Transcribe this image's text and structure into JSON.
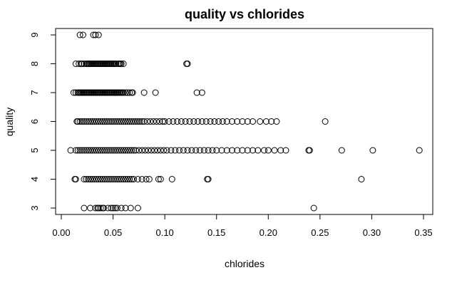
{
  "chart_data": {
    "type": "scatter",
    "title": "quality vs chlorides",
    "xlabel": "chlorides",
    "ylabel": "quality",
    "xlim": [
      0.0,
      0.35
    ],
    "ylim": [
      3,
      9
    ],
    "xticks": [
      "0.00",
      "0.05",
      "0.10",
      "0.15",
      "0.20",
      "0.25",
      "0.30",
      "0.35"
    ],
    "xtick_values": [
      0.0,
      0.05,
      0.1,
      0.15,
      0.2,
      0.25,
      0.3,
      0.35
    ],
    "yticks": [
      "3",
      "4",
      "5",
      "6",
      "7",
      "8",
      "9"
    ],
    "ytick_values": [
      3,
      4,
      5,
      6,
      7,
      8,
      9
    ],
    "grid": false,
    "legend": "none",
    "marker": "open-circle",
    "series": [
      {
        "points_by_quality": [
          {
            "y": 9,
            "x": [
              0.018,
              0.021,
              0.031,
              0.033,
              0.036
            ]
          },
          {
            "y": 8,
            "x": [
              0.014,
              0.017,
              0.019,
              0.02,
              0.022,
              0.024,
              0.025,
              0.026,
              0.027,
              0.028,
              0.029,
              0.03,
              0.031,
              0.032,
              0.033,
              0.034,
              0.035,
              0.036,
              0.037,
              0.038,
              0.039,
              0.04,
              0.041,
              0.042,
              0.043,
              0.044,
              0.045,
              0.046,
              0.047,
              0.048,
              0.049,
              0.05,
              0.051,
              0.052,
              0.053,
              0.055,
              0.056,
              0.057,
              0.058,
              0.06,
              0.121,
              0.122
            ]
          },
          {
            "y": 7,
            "x": [
              0.012,
              0.014,
              0.016,
              0.017,
              0.018,
              0.019,
              0.02,
              0.021,
              0.022,
              0.023,
              0.024,
              0.025,
              0.026,
              0.027,
              0.028,
              0.029,
              0.03,
              0.031,
              0.032,
              0.033,
              0.034,
              0.035,
              0.036,
              0.037,
              0.038,
              0.039,
              0.04,
              0.041,
              0.042,
              0.043,
              0.044,
              0.045,
              0.046,
              0.047,
              0.048,
              0.049,
              0.05,
              0.051,
              0.052,
              0.053,
              0.054,
              0.055,
              0.056,
              0.057,
              0.058,
              0.059,
              0.06,
              0.062,
              0.064,
              0.066,
              0.068,
              0.069,
              0.08,
              0.091,
              0.131,
              0.136
            ]
          },
          {
            "y": 6,
            "x": [
              0.015,
              0.016,
              0.018,
              0.02,
              0.022,
              0.024,
              0.026,
              0.028,
              0.03,
              0.032,
              0.034,
              0.036,
              0.038,
              0.04,
              0.042,
              0.044,
              0.046,
              0.048,
              0.05,
              0.052,
              0.054,
              0.056,
              0.058,
              0.06,
              0.062,
              0.064,
              0.066,
              0.068,
              0.07,
              0.072,
              0.074,
              0.076,
              0.078,
              0.08,
              0.083,
              0.086,
              0.089,
              0.092,
              0.095,
              0.098,
              0.1,
              0.104,
              0.108,
              0.112,
              0.116,
              0.12,
              0.124,
              0.128,
              0.132,
              0.136,
              0.14,
              0.144,
              0.148,
              0.152,
              0.156,
              0.16,
              0.165,
              0.17,
              0.175,
              0.18,
              0.185,
              0.192,
              0.198,
              0.203,
              0.208,
              0.255
            ]
          },
          {
            "y": 5,
            "x": [
              0.009,
              0.014,
              0.016,
              0.018,
              0.02,
              0.022,
              0.024,
              0.026,
              0.028,
              0.03,
              0.032,
              0.034,
              0.036,
              0.038,
              0.04,
              0.042,
              0.044,
              0.046,
              0.048,
              0.05,
              0.052,
              0.054,
              0.056,
              0.058,
              0.06,
              0.062,
              0.064,
              0.066,
              0.068,
              0.07,
              0.072,
              0.075,
              0.078,
              0.081,
              0.084,
              0.087,
              0.09,
              0.093,
              0.096,
              0.099,
              0.102,
              0.106,
              0.11,
              0.114,
              0.118,
              0.122,
              0.126,
              0.13,
              0.134,
              0.138,
              0.142,
              0.146,
              0.15,
              0.155,
              0.16,
              0.165,
              0.17,
              0.175,
              0.18,
              0.185,
              0.19,
              0.196,
              0.2,
              0.206,
              0.212,
              0.217,
              0.239,
              0.24,
              0.271,
              0.301,
              0.346
            ]
          },
          {
            "y": 4,
            "x": [
              0.013,
              0.014,
              0.022,
              0.024,
              0.026,
              0.028,
              0.03,
              0.032,
              0.034,
              0.036,
              0.038,
              0.04,
              0.042,
              0.044,
              0.046,
              0.048,
              0.05,
              0.052,
              0.054,
              0.056,
              0.058,
              0.06,
              0.062,
              0.064,
              0.066,
              0.068,
              0.07,
              0.074,
              0.078,
              0.082,
              0.085,
              0.094,
              0.096,
              0.107,
              0.141,
              0.142,
              0.29
            ]
          },
          {
            "y": 3,
            "x": [
              0.022,
              0.028,
              0.033,
              0.035,
              0.036,
              0.038,
              0.04,
              0.041,
              0.045,
              0.048,
              0.05,
              0.052,
              0.054,
              0.058,
              0.062,
              0.067,
              0.074,
              0.244
            ]
          }
        ]
      }
    ]
  }
}
